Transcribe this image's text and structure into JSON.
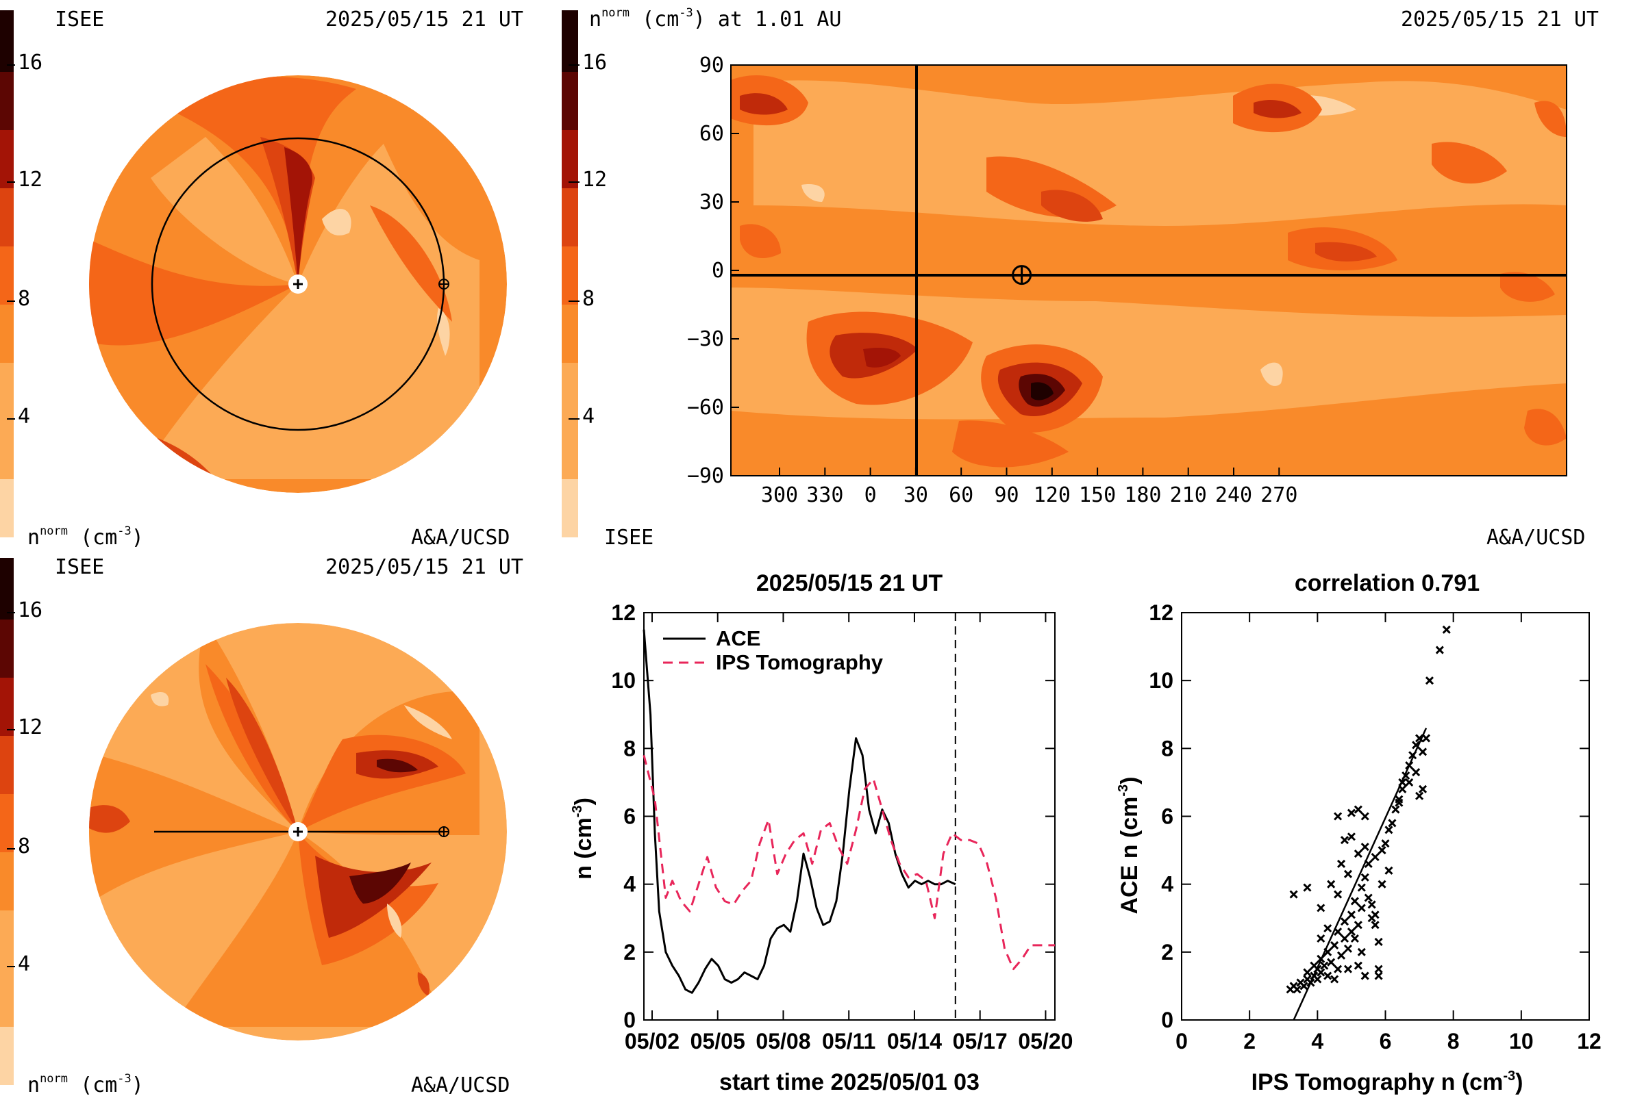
{
  "colors": {
    "scale": [
      "#fdd4a4",
      "#fcaa55",
      "#f98a2a",
      "#f46618",
      "#dd4410",
      "#c02a0a",
      "#a31406",
      "#800b04",
      "#5c0603",
      "#3a0301",
      "#1e0100"
    ],
    "background": "#ffffff"
  },
  "panel_top_left": {
    "label_org": "ISEE",
    "label_time": "2025/05/15 21 UT",
    "label_credit": "A&A/UCSD",
    "label_units": "n",
    "label_units_sup": "norm",
    "label_units_tail": " (cm",
    "label_units_exp": "-3",
    "label_units_close": ")",
    "colorbar_ticks": [
      "16",
      "12",
      "8",
      "4"
    ]
  },
  "panel_bottom_left": {
    "label_org": "ISEE",
    "label_time": "2025/05/15 21 UT",
    "label_credit": "A&A/UCSD",
    "label_units": "n",
    "label_units_sup": "norm",
    "label_units_tail": " (cm",
    "label_units_exp": "-3",
    "label_units_close": ")",
    "colorbar_ticks": [
      "16",
      "12",
      "8",
      "4"
    ]
  },
  "panel_top_right": {
    "title_n": "n",
    "title_sup": "norm",
    "title_tail": " (cm",
    "title_exp": "-3",
    "title_close": ") at 1.01 AU",
    "label_time": "2025/05/15 21 UT",
    "label_org": "ISEE",
    "label_credit": "A&A/UCSD",
    "colorbar_ticks": [
      "16",
      "12",
      "8",
      "4"
    ]
  },
  "chart_data": [
    {
      "type": "heatmap",
      "name": "synoptic map",
      "x_ticks": [
        "300",
        "330",
        "0",
        "30",
        "60",
        "90",
        "120",
        "150",
        "180",
        "210",
        "240",
        "270"
      ],
      "y_ticks": [
        "90",
        "60",
        "30",
        "0",
        "−30",
        "−60",
        "−90"
      ],
      "ylim": [
        -90,
        90
      ],
      "colorbar": {
        "min": 0,
        "max": 18,
        "ticks": [
          4,
          8,
          12,
          16
        ]
      },
      "earth": {
        "lon": 100,
        "lat": -2
      }
    },
    {
      "type": "line",
      "title": "2025/05/15 21 UT",
      "xlabel": "start time 2025/05/01 03",
      "ylabel_main": "n (cm",
      "ylabel_exp": "-3",
      "ylabel_close": ")",
      "x_tick_labels": [
        "05/02",
        "05/05",
        "05/08",
        "05/11",
        "05/14",
        "05/17",
        "05/20"
      ],
      "x_tick_days": [
        0.875,
        3.875,
        6.875,
        9.875,
        12.875,
        15.875,
        18.875
      ],
      "xlim": [
        0.5,
        19.3
      ],
      "ylim": [
        0,
        12
      ],
      "y_ticks": [
        "0",
        "2",
        "4",
        "6",
        "8",
        "10",
        "12"
      ],
      "now_day": 14.75,
      "series": [
        {
          "name": "ACE",
          "color": "#000000",
          "dash": "none",
          "x": [
            0.5,
            0.8,
            1.0,
            1.2,
            1.5,
            1.8,
            2.1,
            2.4,
            2.7,
            3.0,
            3.3,
            3.6,
            3.9,
            4.2,
            4.5,
            4.8,
            5.1,
            5.4,
            5.7,
            6.0,
            6.3,
            6.6,
            6.9,
            7.2,
            7.5,
            7.8,
            8.1,
            8.4,
            8.7,
            9.0,
            9.3,
            9.6,
            9.9,
            10.2,
            10.5,
            10.8,
            11.1,
            11.4,
            11.7,
            12.0,
            12.3,
            12.6,
            12.9,
            13.2,
            13.5,
            13.8,
            14.1,
            14.4,
            14.75
          ],
          "y": [
            11.5,
            9.0,
            5.5,
            3.2,
            2.0,
            1.6,
            1.3,
            0.9,
            0.8,
            1.1,
            1.5,
            1.8,
            1.6,
            1.2,
            1.1,
            1.2,
            1.4,
            1.3,
            1.2,
            1.6,
            2.4,
            2.7,
            2.8,
            2.6,
            3.5,
            4.9,
            4.2,
            3.3,
            2.8,
            2.9,
            3.5,
            4.9,
            6.8,
            8.3,
            7.8,
            6.2,
            5.5,
            6.2,
            5.8,
            4.9,
            4.3,
            3.9,
            4.1,
            4.0,
            4.1,
            4.0,
            4.0,
            4.1,
            4.0
          ]
        },
        {
          "name": "IPS Tomography",
          "color": "#e8265a",
          "dash": "14,9",
          "x": [
            0.5,
            1.0,
            1.5,
            1.8,
            2.2,
            2.6,
            3.0,
            3.4,
            3.8,
            4.2,
            4.6,
            5.0,
            5.4,
            5.8,
            6.2,
            6.6,
            7.0,
            7.4,
            7.8,
            8.2,
            8.6,
            9.0,
            9.4,
            9.8,
            10.2,
            10.6,
            11.0,
            11.4,
            11.8,
            12.2,
            12.6,
            13.0,
            13.4,
            13.8,
            14.2,
            14.6,
            15.0,
            15.4,
            15.8,
            16.2,
            16.6,
            17.0,
            17.4,
            17.8,
            18.2,
            18.6,
            19.0,
            19.3
          ],
          "y": [
            7.8,
            6.5,
            3.6,
            4.1,
            3.5,
            3.2,
            4.0,
            4.8,
            3.9,
            3.5,
            3.4,
            3.8,
            4.1,
            5.2,
            5.9,
            4.3,
            4.9,
            5.3,
            5.5,
            4.6,
            5.6,
            5.8,
            5.1,
            4.6,
            5.6,
            6.8,
            7.1,
            6.2,
            5.3,
            4.6,
            4.2,
            4.3,
            4.1,
            3.0,
            4.9,
            5.5,
            5.3,
            5.3,
            5.2,
            4.6,
            3.6,
            2.1,
            1.5,
            1.8,
            2.2,
            2.2,
            2.2,
            2.2
          ]
        }
      ]
    },
    {
      "type": "scatter",
      "title": "correlation 0.791",
      "xlabel_main": "IPS Tomography n (cm",
      "xlabel_exp": "-3",
      "xlabel_close": ")",
      "ylabel_main": "ACE n (cm",
      "ylabel_exp": "-3",
      "ylabel_close": ")",
      "xlim": [
        0,
        12
      ],
      "ylim": [
        0,
        12
      ],
      "x_ticks": [
        "0",
        "2",
        "4",
        "6",
        "8",
        "10",
        "12"
      ],
      "y_ticks": [
        "0",
        "2",
        "4",
        "6",
        "8",
        "10",
        "12"
      ],
      "fit": {
        "x": [
          3.3,
          7.2
        ],
        "y": [
          -0.3,
          8.6
        ]
      },
      "points": [
        [
          3.2,
          0.9
        ],
        [
          3.3,
          1.0
        ],
        [
          3.4,
          0.9
        ],
        [
          3.5,
          1.1
        ],
        [
          3.6,
          1.0
        ],
        [
          3.7,
          1.2
        ],
        [
          3.7,
          1.4
        ],
        [
          3.8,
          1.1
        ],
        [
          3.9,
          1.3
        ],
        [
          3.9,
          1.6
        ],
        [
          4.0,
          1.2
        ],
        [
          4.0,
          1.5
        ],
        [
          4.1,
          1.4
        ],
        [
          4.1,
          1.8
        ],
        [
          4.2,
          1.6
        ],
        [
          4.3,
          1.3
        ],
        [
          4.3,
          2.0
        ],
        [
          4.4,
          1.7
        ],
        [
          4.5,
          2.2
        ],
        [
          4.6,
          1.5
        ],
        [
          4.6,
          2.6
        ],
        [
          4.7,
          1.9
        ],
        [
          4.8,
          2.4
        ],
        [
          4.8,
          2.9
        ],
        [
          4.9,
          2.1
        ],
        [
          5.0,
          3.1
        ],
        [
          5.0,
          2.6
        ],
        [
          5.1,
          3.5
        ],
        [
          5.2,
          2.8
        ],
        [
          5.3,
          3.9
        ],
        [
          5.3,
          3.3
        ],
        [
          5.4,
          4.2
        ],
        [
          5.5,
          3.6
        ],
        [
          5.5,
          4.6
        ],
        [
          5.6,
          3.0
        ],
        [
          5.7,
          4.8
        ],
        [
          5.7,
          2.8
        ],
        [
          5.8,
          1.3
        ],
        [
          5.8,
          1.5
        ],
        [
          5.9,
          5.0
        ],
        [
          6.0,
          5.2
        ],
        [
          6.1,
          5.6
        ],
        [
          6.2,
          5.8
        ],
        [
          6.3,
          6.2
        ],
        [
          6.4,
          6.4
        ],
        [
          6.5,
          7.0
        ],
        [
          6.6,
          7.2
        ],
        [
          6.7,
          7.5
        ],
        [
          6.8,
          7.8
        ],
        [
          6.9,
          8.1
        ],
        [
          7.0,
          8.3
        ],
        [
          7.1,
          7.9
        ],
        [
          7.2,
          8.3
        ],
        [
          7.1,
          6.8
        ],
        [
          7.0,
          6.6
        ],
        [
          6.9,
          7.3
        ],
        [
          6.7,
          7.0
        ],
        [
          6.5,
          6.8
        ],
        [
          6.4,
          6.5
        ],
        [
          7.3,
          10.0
        ],
        [
          7.6,
          10.9
        ],
        [
          7.8,
          11.5
        ],
        [
          5.2,
          6.2
        ],
        [
          5.4,
          6.0
        ],
        [
          5.0,
          6.1
        ],
        [
          4.8,
          5.3
        ],
        [
          4.6,
          6.0
        ],
        [
          5.0,
          5.4
        ],
        [
          5.4,
          5.1
        ],
        [
          5.2,
          4.9
        ],
        [
          4.7,
          4.6
        ],
        [
          4.9,
          4.3
        ],
        [
          4.4,
          4.0
        ],
        [
          3.3,
          3.7
        ],
        [
          3.7,
          3.9
        ],
        [
          4.1,
          3.3
        ],
        [
          4.3,
          2.7
        ],
        [
          4.1,
          2.4
        ],
        [
          4.9,
          1.5
        ],
        [
          4.5,
          1.2
        ],
        [
          5.2,
          1.6
        ],
        [
          5.4,
          1.3
        ],
        [
          5.8,
          2.3
        ],
        [
          5.7,
          3.1
        ],
        [
          5.6,
          3.4
        ],
        [
          5.9,
          4.0
        ],
        [
          6.1,
          4.4
        ],
        [
          5.1,
          2.4
        ],
        [
          5.3,
          2.0
        ],
        [
          4.6,
          3.7
        ]
      ]
    }
  ]
}
